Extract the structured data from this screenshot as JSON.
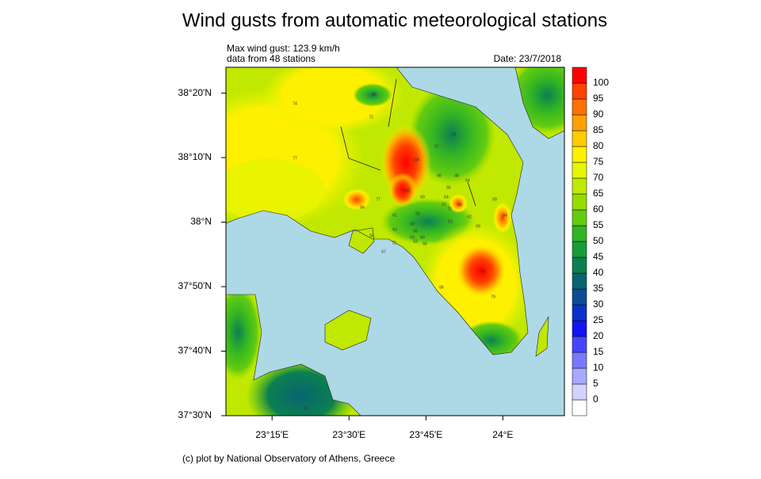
{
  "title": "Wind gusts from automatic meteorological stations",
  "info": {
    "max_gust": "Max wind gust: 123.9 km/h",
    "stations_count": "data from 48 stations",
    "date": "Date: 23/7/2018"
  },
  "footer": "(c) plot by National Observatory of Athens, Greece",
  "map": {
    "lonlim": [
      23.1,
      24.2
    ],
    "latlim": [
      37.5,
      38.4
    ],
    "lon_ticks": [
      {
        "value": 23.25,
        "label": "23°15'E"
      },
      {
        "value": 23.5,
        "label": "23°30'E"
      },
      {
        "value": 23.75,
        "label": "23°45'E"
      },
      {
        "value": 24,
        "label": "24°E"
      }
    ],
    "lat_ticks": [
      {
        "value": 37.5,
        "label": "37°30'N"
      },
      {
        "value": 37.6667,
        "label": "37°40'N"
      },
      {
        "value": 37.8333,
        "label": "37°50'N"
      },
      {
        "value": 38,
        "label": "38°N"
      },
      {
        "value": 38.1667,
        "label": "38°10'N"
      },
      {
        "value": 38.3333,
        "label": "38°20'N"
      }
    ],
    "station_labels": [
      "74",
      "72",
      "77",
      "66",
      "52",
      "47",
      "106",
      "66",
      "48",
      "64",
      "66",
      "100",
      "69",
      "64",
      "77",
      "84",
      "52",
      "72",
      "96",
      "59",
      "61",
      "56",
      "62",
      "84",
      "53",
      "69",
      "68",
      "63",
      "55",
      "59",
      "53",
      "60",
      "66",
      "72",
      "56",
      "67",
      "86",
      "66",
      "79",
      "35"
    ]
  },
  "colorbar": {
    "levels": [
      0,
      5,
      10,
      15,
      20,
      25,
      30,
      35,
      40,
      45,
      50,
      55,
      60,
      65,
      70,
      75,
      80,
      85,
      90,
      95,
      100
    ],
    "colors": [
      "#ffffff",
      "#d2d2ff",
      "#a8a8ff",
      "#7878ff",
      "#4646ff",
      "#1414f0",
      "#0a32c8",
      "#0a4c96",
      "#086470",
      "#0c8050",
      "#189c38",
      "#32b424",
      "#64cc10",
      "#96dc00",
      "#c0e800",
      "#e6f500",
      "#fff000",
      "#ffcc00",
      "#ffa000",
      "#ff7200",
      "#ff4200",
      "#ff0000"
    ]
  }
}
